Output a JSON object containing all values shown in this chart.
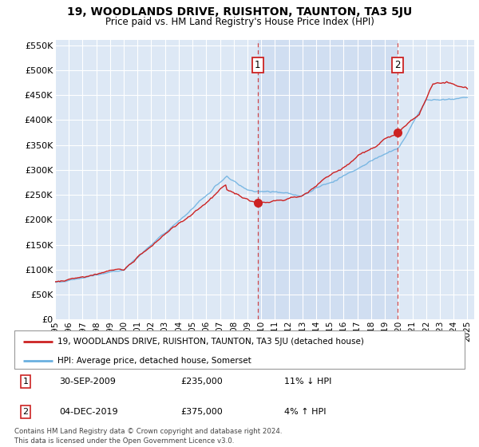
{
  "title": "19, WOODLANDS DRIVE, RUISHTON, TAUNTON, TA3 5JU",
  "subtitle": "Price paid vs. HM Land Registry's House Price Index (HPI)",
  "background_color": "#ffffff",
  "plot_bg_color": "#dde8f5",
  "grid_color": "#ffffff",
  "ylim": [
    0,
    560000
  ],
  "yticks": [
    0,
    50000,
    100000,
    150000,
    200000,
    250000,
    300000,
    350000,
    400000,
    450000,
    500000,
    550000
  ],
  "transaction1": {
    "date": "30-SEP-2009",
    "price": 235000,
    "hpi_diff": "11% ↓ HPI",
    "label": "1",
    "x_year": 2009.75
  },
  "transaction2": {
    "date": "04-DEC-2019",
    "price": 375000,
    "hpi_diff": "4% ↑ HPI",
    "label": "2",
    "x_year": 2019.92
  },
  "legend_label1": "19, WOODLANDS DRIVE, RUISHTON, TAUNTON, TA3 5JU (detached house)",
  "legend_label2": "HPI: Average price, detached house, Somerset",
  "footer": "Contains HM Land Registry data © Crown copyright and database right 2024.\nThis data is licensed under the Open Government Licence v3.0.",
  "hpi_color": "#6ab0e0",
  "price_color": "#cc2222",
  "xlim_left": 1995,
  "xlim_right": 2025.5
}
